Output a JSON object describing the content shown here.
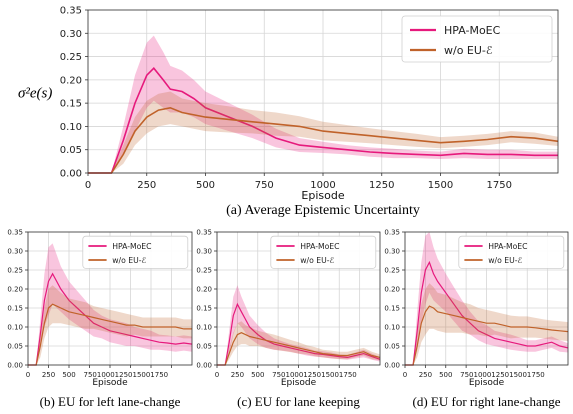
{
  "colors": {
    "hpa": "#e6197c",
    "wo": "#c0622a"
  },
  "chart_data": [
    {
      "type": "line",
      "caption": "(a) Average Epistemic Uncertainty",
      "xlabel": "Episode",
      "ylabel": "σ²e(s)",
      "xlim": [
        0,
        2000
      ],
      "ylim": [
        0,
        0.35
      ],
      "xticks": [
        "0",
        "250",
        "500",
        "750",
        "1000",
        "1250",
        "1500",
        "1750"
      ],
      "yticks": [
        "0.00",
        "0.05",
        "0.10",
        "0.15",
        "0.20",
        "0.25",
        "0.30",
        "0.35"
      ],
      "grid": true,
      "legend": "top-right",
      "series": [
        {
          "name": "HPA-MoEC",
          "x": [
            0,
            100,
            150,
            200,
            250,
            280,
            320,
            350,
            400,
            450,
            500,
            600,
            700,
            800,
            900,
            1000,
            1100,
            1200,
            1300,
            1400,
            1500,
            1600,
            1700,
            1800,
            1900,
            2000
          ],
          "y": [
            0,
            0,
            0.07,
            0.15,
            0.21,
            0.225,
            0.2,
            0.18,
            0.175,
            0.16,
            0.14,
            0.12,
            0.1,
            0.075,
            0.06,
            0.055,
            0.05,
            0.045,
            0.042,
            0.04,
            0.038,
            0.042,
            0.04,
            0.04,
            0.038,
            0.038
          ],
          "band": [
            0,
            0,
            0.03,
            0.06,
            0.07,
            0.07,
            0.06,
            0.05,
            0.045,
            0.04,
            0.035,
            0.03,
            0.025,
            0.02,
            0.015,
            0.012,
            0.01,
            0.01,
            0.01,
            0.008,
            0.008,
            0.01,
            0.01,
            0.01,
            0.008,
            0.008
          ]
        },
        {
          "name": "w/o EU-ℰ",
          "x": [
            0,
            100,
            150,
            200,
            250,
            300,
            350,
            400,
            500,
            600,
            700,
            800,
            900,
            1000,
            1100,
            1200,
            1300,
            1400,
            1500,
            1600,
            1700,
            1800,
            1900,
            2000
          ],
          "y": [
            0,
            0,
            0.04,
            0.09,
            0.12,
            0.135,
            0.14,
            0.13,
            0.12,
            0.115,
            0.11,
            0.105,
            0.1,
            0.09,
            0.085,
            0.08,
            0.075,
            0.07,
            0.065,
            0.068,
            0.072,
            0.078,
            0.075,
            0.068
          ],
          "band": [
            0,
            0,
            0.02,
            0.03,
            0.035,
            0.035,
            0.035,
            0.03,
            0.03,
            0.028,
            0.025,
            0.025,
            0.022,
            0.02,
            0.018,
            0.016,
            0.015,
            0.014,
            0.012,
            0.012,
            0.012,
            0.012,
            0.012,
            0.01
          ]
        }
      ]
    },
    {
      "type": "line",
      "caption": "(b) EU for left lane-change",
      "xlabel": "Episode",
      "xlim": [
        0,
        2000
      ],
      "ylim": [
        0,
        0.35
      ],
      "xticks": [
        "0",
        "250",
        "500",
        "7501000125015001750"
      ],
      "yticks": [
        "0.00",
        "0.05",
        "0.10",
        "0.15",
        "0.20",
        "0.25",
        "0.30",
        "0.35"
      ],
      "grid": true,
      "legend": "top-right",
      "series": [
        {
          "name": "HPA-MoEC",
          "x": [
            0,
            100,
            150,
            200,
            250,
            300,
            350,
            400,
            500,
            600,
            700,
            800,
            900,
            1000,
            1100,
            1200,
            1300,
            1400,
            1500,
            1600,
            1700,
            1800,
            1900,
            2000
          ],
          "y": [
            0,
            0,
            0.08,
            0.17,
            0.22,
            0.24,
            0.22,
            0.2,
            0.17,
            0.15,
            0.13,
            0.11,
            0.1,
            0.09,
            0.085,
            0.08,
            0.075,
            0.07,
            0.065,
            0.06,
            0.058,
            0.055,
            0.058,
            0.055
          ],
          "band": [
            0,
            0,
            0.04,
            0.07,
            0.09,
            0.08,
            0.07,
            0.06,
            0.05,
            0.045,
            0.04,
            0.035,
            0.03,
            0.03,
            0.03,
            0.03,
            0.025,
            0.025,
            0.025,
            0.02,
            0.02,
            0.02,
            0.02,
            0.02
          ]
        },
        {
          "name": "w/o EU-ℰ",
          "x": [
            0,
            100,
            150,
            200,
            250,
            300,
            350,
            400,
            500,
            600,
            700,
            800,
            900,
            1000,
            1100,
            1200,
            1300,
            1400,
            1500,
            1600,
            1700,
            1800,
            1900,
            2000
          ],
          "y": [
            0,
            0,
            0.05,
            0.11,
            0.15,
            0.16,
            0.155,
            0.15,
            0.14,
            0.135,
            0.13,
            0.125,
            0.12,
            0.115,
            0.11,
            0.105,
            0.105,
            0.1,
            0.1,
            0.1,
            0.1,
            0.1,
            0.095,
            0.095
          ],
          "band": [
            0,
            0,
            0.03,
            0.04,
            0.05,
            0.05,
            0.045,
            0.04,
            0.035,
            0.035,
            0.035,
            0.03,
            0.03,
            0.03,
            0.03,
            0.03,
            0.025,
            0.025,
            0.025,
            0.025,
            0.025,
            0.025,
            0.025,
            0.025
          ]
        }
      ]
    },
    {
      "type": "line",
      "caption": "(c) EU for lane keeping",
      "xlabel": "Episode",
      "xlim": [
        0,
        2000
      ],
      "ylim": [
        0,
        0.35
      ],
      "xticks": [
        "0",
        "250",
        "500",
        "7501000125015001750"
      ],
      "yticks": [
        "0.00",
        "0.05",
        "0.10",
        "0.15",
        "0.20",
        "0.25",
        "0.30",
        "0.35"
      ],
      "grid": true,
      "legend": "top-right",
      "series": [
        {
          "name": "HPA-MoEC",
          "x": [
            0,
            100,
            150,
            200,
            250,
            300,
            350,
            400,
            500,
            600,
            700,
            800,
            900,
            1000,
            1100,
            1200,
            1300,
            1400,
            1500,
            1600,
            1700,
            1800,
            1900,
            2000
          ],
          "y": [
            0,
            0,
            0.06,
            0.13,
            0.16,
            0.14,
            0.12,
            0.1,
            0.08,
            0.065,
            0.055,
            0.05,
            0.045,
            0.04,
            0.035,
            0.03,
            0.028,
            0.025,
            0.022,
            0.02,
            0.025,
            0.03,
            0.022,
            0.015
          ],
          "band": [
            0,
            0,
            0.03,
            0.05,
            0.05,
            0.04,
            0.035,
            0.03,
            0.025,
            0.02,
            0.015,
            0.012,
            0.01,
            0.01,
            0.01,
            0.008,
            0.008,
            0.008,
            0.006,
            0.006,
            0.008,
            0.01,
            0.008,
            0.006
          ]
        },
        {
          "name": "w/o EU-ℰ",
          "x": [
            0,
            100,
            150,
            200,
            250,
            300,
            350,
            400,
            500,
            600,
            700,
            800,
            900,
            1000,
            1100,
            1200,
            1300,
            1400,
            1500,
            1600,
            1700,
            1800,
            1900,
            2000
          ],
          "y": [
            0,
            0,
            0.03,
            0.06,
            0.08,
            0.085,
            0.08,
            0.075,
            0.07,
            0.065,
            0.06,
            0.055,
            0.05,
            0.045,
            0.04,
            0.035,
            0.03,
            0.028,
            0.025,
            0.025,
            0.03,
            0.035,
            0.025,
            0.02
          ],
          "band": [
            0,
            0,
            0.015,
            0.025,
            0.03,
            0.03,
            0.025,
            0.025,
            0.02,
            0.02,
            0.02,
            0.018,
            0.016,
            0.015,
            0.012,
            0.012,
            0.01,
            0.01,
            0.01,
            0.01,
            0.01,
            0.01,
            0.01,
            0.008
          ]
        }
      ]
    },
    {
      "type": "line",
      "caption": "(d) EU for right lane-change",
      "xlabel": "Episode",
      "xlim": [
        0,
        2000
      ],
      "ylim": [
        0,
        0.35
      ],
      "xticks": [
        "0",
        "250",
        "500",
        "7501000125015001750"
      ],
      "yticks": [
        "0.00",
        "0.05",
        "0.10",
        "0.15",
        "0.20",
        "0.25",
        "0.30",
        "0.35"
      ],
      "grid": true,
      "legend": "top-right",
      "series": [
        {
          "name": "HPA-MoEC",
          "x": [
            0,
            100,
            150,
            200,
            250,
            300,
            350,
            400,
            500,
            600,
            700,
            800,
            900,
            1000,
            1100,
            1200,
            1300,
            1400,
            1500,
            1600,
            1700,
            1800,
            1900,
            2000
          ],
          "y": [
            0,
            0,
            0.09,
            0.19,
            0.25,
            0.27,
            0.24,
            0.22,
            0.19,
            0.16,
            0.13,
            0.11,
            0.09,
            0.08,
            0.07,
            0.065,
            0.06,
            0.055,
            0.05,
            0.05,
            0.055,
            0.06,
            0.05,
            0.045
          ],
          "band": [
            0,
            0,
            0.05,
            0.08,
            0.09,
            0.08,
            0.07,
            0.06,
            0.05,
            0.045,
            0.04,
            0.03,
            0.025,
            0.025,
            0.02,
            0.02,
            0.02,
            0.018,
            0.015,
            0.015,
            0.015,
            0.015,
            0.015,
            0.012
          ]
        },
        {
          "name": "w/o EU-ℰ",
          "x": [
            0,
            100,
            150,
            200,
            250,
            300,
            350,
            400,
            500,
            600,
            700,
            800,
            900,
            1000,
            1100,
            1200,
            1300,
            1400,
            1500,
            1600,
            1700,
            1800,
            1900,
            2000
          ],
          "y": [
            0,
            0,
            0.05,
            0.11,
            0.14,
            0.155,
            0.15,
            0.14,
            0.135,
            0.13,
            0.125,
            0.12,
            0.115,
            0.11,
            0.11,
            0.105,
            0.1,
            0.1,
            0.1,
            0.098,
            0.095,
            0.092,
            0.09,
            0.088
          ],
          "band": [
            0,
            0,
            0.03,
            0.05,
            0.06,
            0.06,
            0.055,
            0.05,
            0.05,
            0.045,
            0.04,
            0.04,
            0.035,
            0.035,
            0.03,
            0.03,
            0.03,
            0.028,
            0.028,
            0.026,
            0.025,
            0.025,
            0.025,
            0.025
          ]
        }
      ]
    }
  ]
}
